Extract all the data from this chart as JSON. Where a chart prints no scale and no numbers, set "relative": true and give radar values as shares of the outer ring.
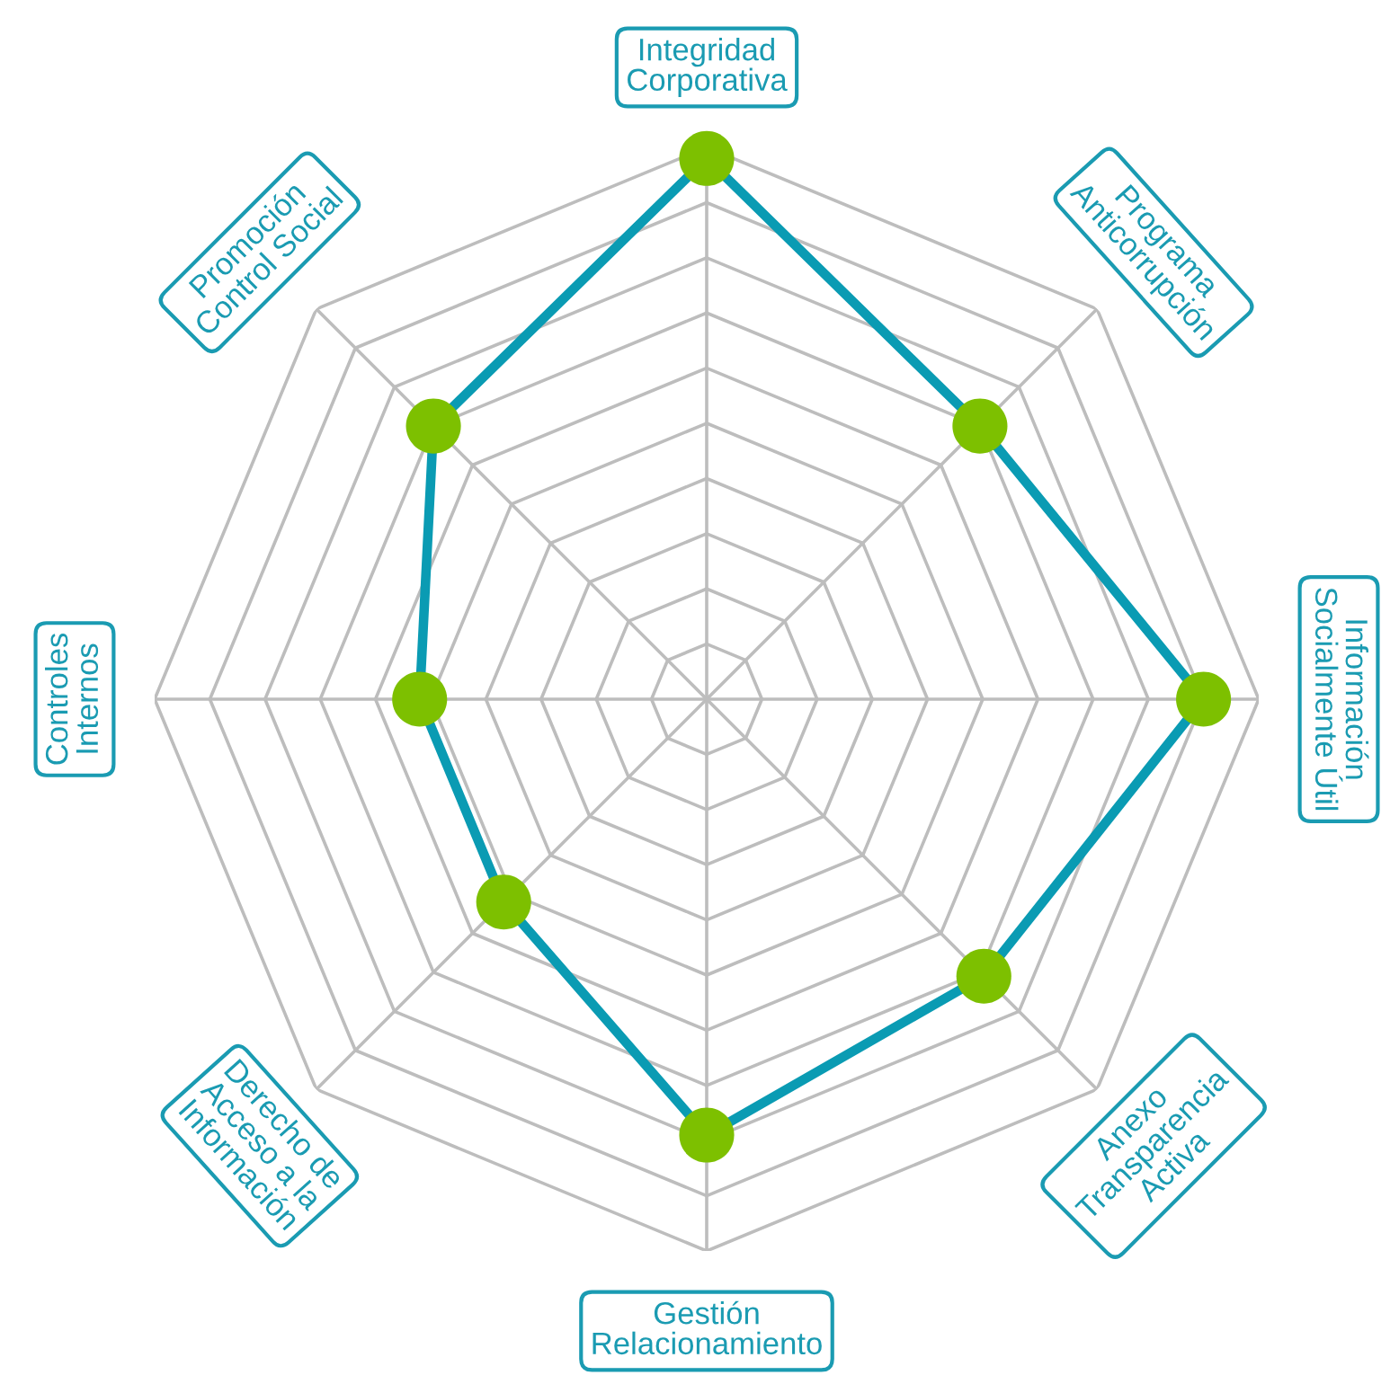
{
  "chart_data": {
    "type": "radar",
    "relative": true,
    "grid": true,
    "marker": "circle",
    "line_style": "solid",
    "categories": [
      "Integridad\nCorporativa",
      "Programa\nAnticorrupción",
      "Información\nSocialmente Útil",
      "Anexo\nTransparencia\nActiva",
      "Gestión\nRelacionamiento",
      "Derecho de\nAcceso a la\nInformación",
      "Controles\nInternos",
      "Promoción\nControl Social"
    ],
    "series": [
      {
        "color": "#0a9bb3",
        "colors": [
          "#7dc000",
          "#7dc000",
          "#7dc000",
          "#7dc000",
          "#7dc000",
          "#7dc000",
          "#7dc000",
          "#7dc000"
        ],
        "values": [
          0.98,
          0.7,
          0.9,
          0.71,
          0.79,
          0.52,
          0.52,
          0.7
        ]
      }
    ]
  }
}
